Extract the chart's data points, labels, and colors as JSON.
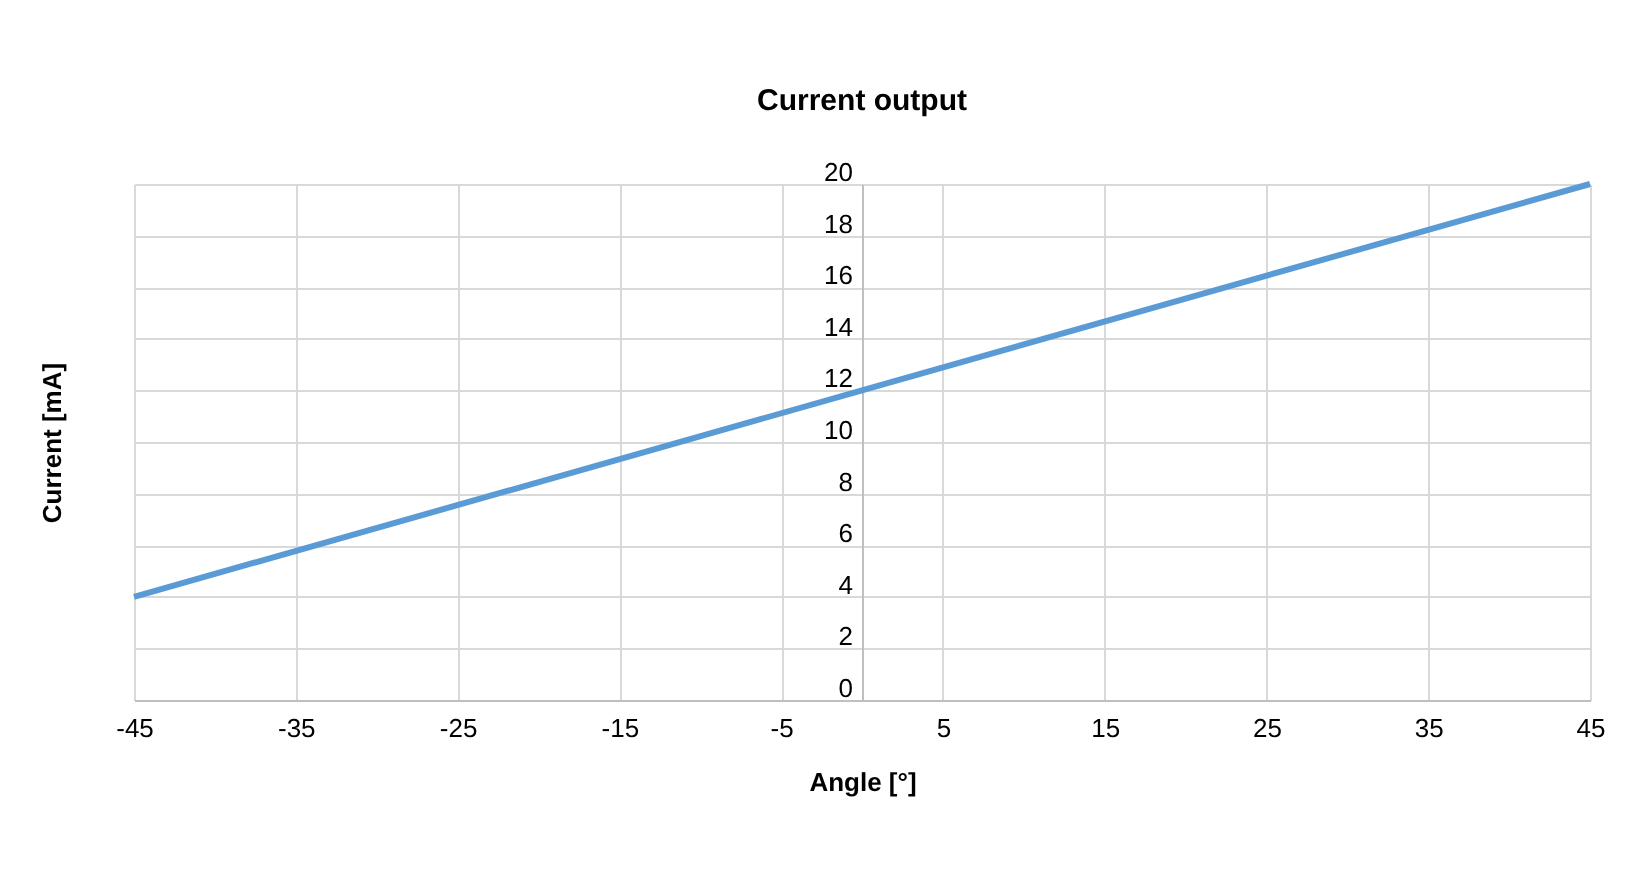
{
  "chart_data": {
    "type": "line",
    "title": "Current output",
    "xlabel": "Angle [°]",
    "ylabel": "Current [mA]",
    "x": [
      -45,
      0,
      45
    ],
    "series": [
      {
        "color": "#5b9bd5",
        "values": [
          4,
          12,
          20
        ]
      }
    ],
    "xlim": [
      -45,
      45
    ],
    "xticks": [
      -45,
      -35,
      -25,
      -15,
      -5,
      5,
      15,
      25,
      35,
      45
    ],
    "ylim": [
      0,
      20
    ],
    "yticks": [
      0,
      2,
      4,
      6,
      8,
      10,
      12,
      14,
      16,
      18,
      20
    ],
    "grid": true,
    "marker": "none",
    "line_style": "solid"
  }
}
